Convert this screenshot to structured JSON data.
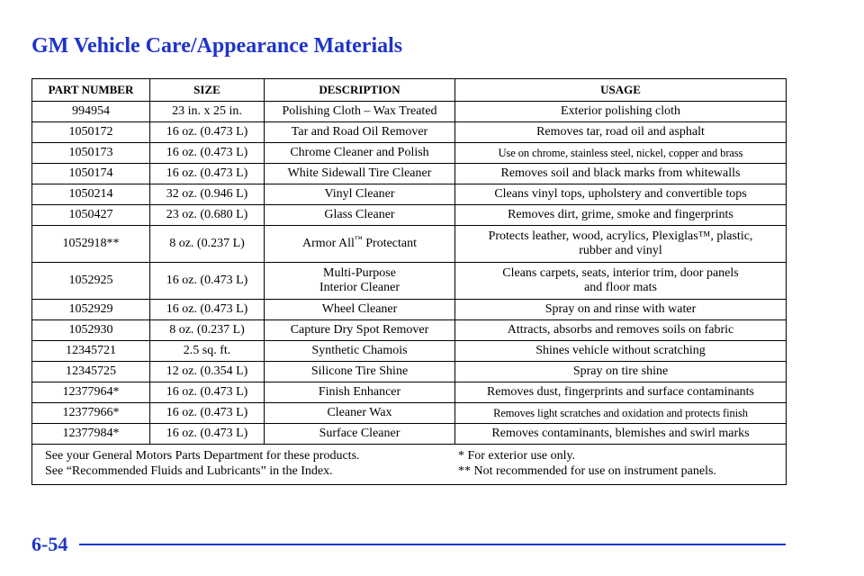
{
  "page": {
    "title": "GM Vehicle Care/Appearance Materials",
    "page_number": "6-54"
  },
  "table": {
    "headers": {
      "part_number": "PART NUMBER",
      "size": "SIZE",
      "description": "DESCRIPTION",
      "usage": "USAGE"
    },
    "rows": [
      {
        "part": "994954",
        "size": "23 in. x 25 in.",
        "desc": "Polishing Cloth – Wax Treated",
        "usage": "Exterior polishing cloth"
      },
      {
        "part": "1050172",
        "size": "16 oz. (0.473 L)",
        "desc": "Tar and Road Oil Remover",
        "usage": "Removes tar, road oil and asphalt"
      },
      {
        "part": "1050173",
        "size": "16 oz. (0.473 L)",
        "desc": "Chrome Cleaner and Polish",
        "usage": "Use on chrome, stainless steel, nickel, copper and brass"
      },
      {
        "part": "1050174",
        "size": "16 oz. (0.473 L)",
        "desc": "White Sidewall Tire Cleaner",
        "usage": "Removes soil and black marks from whitewalls"
      },
      {
        "part": "1050214",
        "size": "32 oz. (0.946 L)",
        "desc": "Vinyl Cleaner",
        "usage": "Cleans vinyl tops, upholstery and convertible tops"
      },
      {
        "part": "1050427",
        "size": "23 oz. (0.680 L)",
        "desc": "Glass Cleaner",
        "usage": "Removes dirt, grime, smoke and fingerprints"
      },
      {
        "part": "1052918**",
        "size": "8 oz. (0.237 L)",
        "desc": "Armor All",
        "desc_tm": "™",
        "desc_suffix": " Protectant",
        "usage_line1": "Protects leather, wood, acrylics, Plexiglas™, plastic,",
        "usage_line2": "rubber and vinyl"
      },
      {
        "part": "1052925",
        "size": "16 oz. (0.473 L)",
        "desc_line1": "Multi-Purpose",
        "desc_line2": "Interior Cleaner",
        "usage_line1": "Cleans carpets, seats, interior trim, door panels",
        "usage_line2": "and floor mats"
      },
      {
        "part": "1052929",
        "size": "16 oz. (0.473 L)",
        "desc": "Wheel Cleaner",
        "usage": "Spray on and rinse with water"
      },
      {
        "part": "1052930",
        "size": "8 oz. (0.237 L)",
        "desc": "Capture Dry Spot Remover",
        "usage": "Attracts, absorbs and removes soils on fabric"
      },
      {
        "part": "12345721",
        "size": "2.5 sq. ft.",
        "desc": "Synthetic Chamois",
        "usage": "Shines vehicle without scratching"
      },
      {
        "part": "12345725",
        "size": "12 oz. (0.354 L)",
        "desc": "Silicone Tire Shine",
        "usage": "Spray on tire shine"
      },
      {
        "part": "12377964*",
        "size": "16 oz. (0.473 L)",
        "desc": "Finish Enhancer",
        "usage": "Removes dust, fingerprints and surface contaminants"
      },
      {
        "part": "12377966*",
        "size": "16 oz. (0.473 L)",
        "desc": "Cleaner Wax",
        "usage": "Removes light scratches and oxidation and protects finish"
      },
      {
        "part": "12377984*",
        "size": "16 oz. (0.473 L)",
        "desc": "Surface Cleaner",
        "usage": "Removes contaminants, blemishes and swirl marks"
      }
    ],
    "notes": {
      "left_line1": "See your General Motors Parts Department for these products.",
      "left_line2": "See “Recommended Fluids and Lubricants” in the Index.",
      "right_line1": "*  For exterior use only.",
      "right_line2": "** Not recommended for use on instrument panels."
    }
  },
  "colors": {
    "accent": "#1f34c8"
  }
}
